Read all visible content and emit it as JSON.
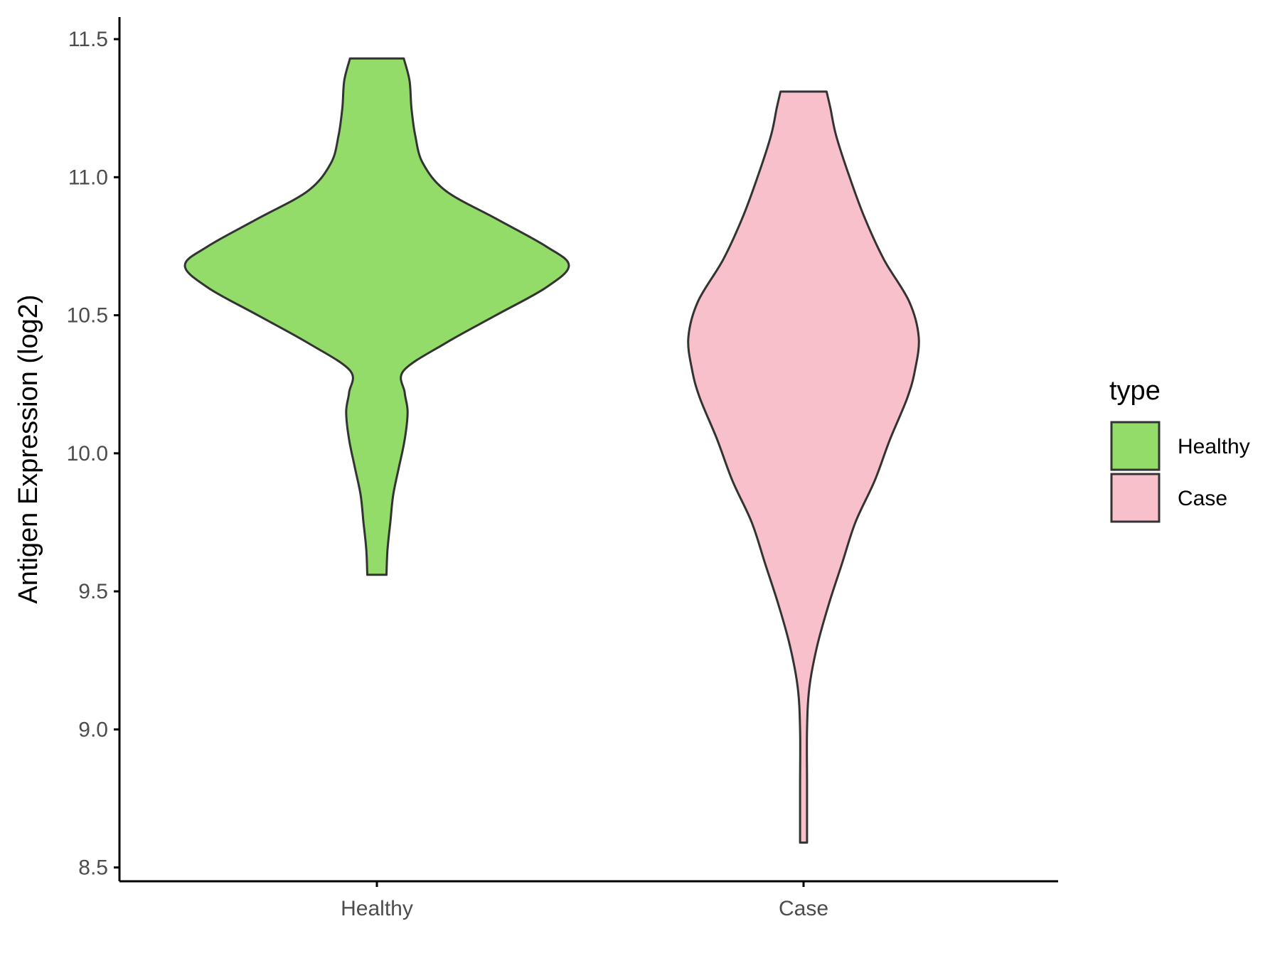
{
  "chart_data": {
    "type": "violin",
    "title": "",
    "xlabel": "",
    "ylabel": "Antigen Expression (log2)",
    "ylim": [
      8.45,
      11.58
    ],
    "yticks": [
      "8.5",
      "9.0",
      "9.5",
      "10.0",
      "10.5",
      "11.0",
      "11.5"
    ],
    "categories": [
      "Healthy",
      "Case"
    ],
    "legend": {
      "title": "type",
      "position": "right",
      "entries": [
        {
          "label": "Healthy",
          "color": "#93dc6a"
        },
        {
          "label": "Case",
          "color": "#f7c0cb"
        }
      ]
    },
    "grid": false,
    "series": [
      {
        "name": "Healthy",
        "color": "#93dc6a",
        "min": 9.56,
        "max": 11.43,
        "density_profile": [
          [
            9.56,
            0.05
          ],
          [
            9.65,
            0.055
          ],
          [
            9.75,
            0.07
          ],
          [
            9.85,
            0.085
          ],
          [
            9.95,
            0.115
          ],
          [
            10.05,
            0.145
          ],
          [
            10.15,
            0.16
          ],
          [
            10.22,
            0.145
          ],
          [
            10.3,
            0.14
          ],
          [
            10.4,
            0.36
          ],
          [
            10.5,
            0.62
          ],
          [
            10.6,
            0.88
          ],
          [
            10.68,
            1.0
          ],
          [
            10.75,
            0.88
          ],
          [
            10.85,
            0.62
          ],
          [
            10.95,
            0.36
          ],
          [
            11.05,
            0.24
          ],
          [
            11.15,
            0.2
          ],
          [
            11.25,
            0.18
          ],
          [
            11.35,
            0.17
          ],
          [
            11.43,
            0.14
          ]
        ]
      },
      {
        "name": "Case",
        "color": "#f7c0cb",
        "min": 8.59,
        "max": 11.31,
        "density_profile": [
          [
            8.59,
            0.018
          ],
          [
            8.8,
            0.018
          ],
          [
            9.0,
            0.018
          ],
          [
            9.15,
            0.03
          ],
          [
            9.3,
            0.07
          ],
          [
            9.45,
            0.13
          ],
          [
            9.6,
            0.2
          ],
          [
            9.75,
            0.27
          ],
          [
            9.9,
            0.37
          ],
          [
            10.05,
            0.45
          ],
          [
            10.2,
            0.54
          ],
          [
            10.3,
            0.58
          ],
          [
            10.42,
            0.6
          ],
          [
            10.55,
            0.55
          ],
          [
            10.7,
            0.42
          ],
          [
            10.85,
            0.32
          ],
          [
            11.0,
            0.24
          ],
          [
            11.15,
            0.17
          ],
          [
            11.25,
            0.14
          ],
          [
            11.31,
            0.12
          ]
        ]
      }
    ]
  }
}
